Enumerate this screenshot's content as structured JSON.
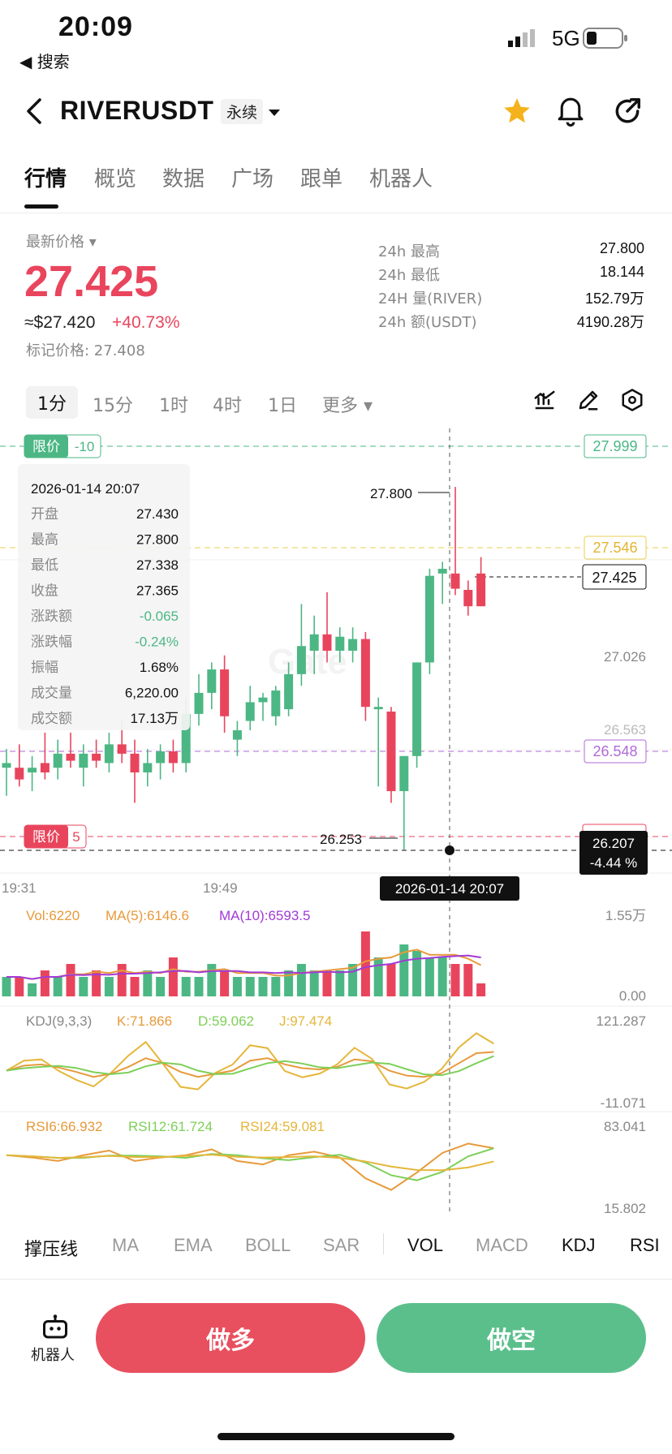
{
  "status": {
    "time": "20:09",
    "back_app": "◀ 搜索",
    "network": "5G"
  },
  "header": {
    "symbol": "RIVERUSDT",
    "type": "永续"
  },
  "tabs": [
    "行情",
    "概览",
    "数据",
    "广场",
    "跟单",
    "机器人"
  ],
  "price": {
    "label": "最新价格 ▾",
    "last": "27.425",
    "usd": "≈$27.420",
    "change": "+40.73%",
    "mark": "标记价格: 27.408"
  },
  "stats": [
    {
      "label": "24h  最高",
      "value": "27.800"
    },
    {
      "label": "24h  最低",
      "value": "18.144"
    },
    {
      "label": "24H  量(RIVER)",
      "value": "152.79万"
    },
    {
      "label": "24h  额(USDT)",
      "value": "4190.28万"
    }
  ],
  "timeframes": [
    "1分",
    "15分",
    "1时",
    "4时",
    "1日",
    "更多 ▾"
  ],
  "chart": {
    "price_labels": {
      "top": "27.999",
      "yellow": "27.546",
      "current": "27.425",
      "mid": "27.026",
      "purple": "26.548",
      "low_box": "26.207",
      "low_pct": "-4.44 %",
      "partial": "26.563"
    },
    "limit_tags": [
      {
        "label": "限价",
        "value": "-10",
        "color": "#4cb784"
      },
      {
        "label": "限价",
        "value": "5",
        "color": "#e8455d"
      }
    ],
    "high_marker": "27.800",
    "low_marker": "26.253",
    "time_labels": [
      "19:31",
      "19:49"
    ],
    "crosshair_time": "2026-01-14 20:07",
    "watermark": "Gate",
    "info": {
      "date": "2026-01-14 20:07",
      "rows": [
        {
          "k": "开盘",
          "v": "27.430"
        },
        {
          "k": "最高",
          "v": "27.800"
        },
        {
          "k": "最低",
          "v": "27.338"
        },
        {
          "k": "收盘",
          "v": "27.365"
        },
        {
          "k": "涨跌额",
          "v": "-0.065"
        },
        {
          "k": "涨跌幅",
          "v": "-0.24%"
        },
        {
          "k": "振幅",
          "v": "1.68%"
        },
        {
          "k": "成交量",
          "v": "6,220.00"
        },
        {
          "k": "成交额",
          "v": "17.13万"
        }
      ]
    },
    "vol": {
      "label": "Vol:6220",
      "ma5": "MA(5):6146.6",
      "ma10": "MA(10):6593.5",
      "top": "1.55万",
      "bottom": "0.00"
    },
    "kdj": {
      "label": "KDJ(9,3,3)",
      "k": "K:71.866",
      "d": "D:59.062",
      "j": "J:97.474",
      "top": "121.287",
      "bottom": "-11.071"
    },
    "rsi": {
      "r6": "RSI6:66.932",
      "r12": "RSI12:61.724",
      "r24": "RSI24:59.081",
      "top": "83.041",
      "bottom": "15.802"
    },
    "up_color": "#4cb784",
    "down_color": "#e8455d"
  },
  "indicator_tabs": [
    "撑压线",
    "MA",
    "EMA",
    "BOLL",
    "SAR",
    "VOL",
    "MACD",
    "KDJ",
    "RSI"
  ],
  "actions": {
    "robot": "机器人",
    "long": "做多",
    "short": "做空"
  },
  "chart_data": {
    "type": "candlestick",
    "ylim": [
      26.15,
      28.05
    ],
    "candles": [
      {
        "o": 26.6,
        "h": 26.68,
        "l": 26.48,
        "c": 26.62
      },
      {
        "o": 26.6,
        "h": 26.7,
        "l": 26.52,
        "c": 26.55
      },
      {
        "o": 26.58,
        "h": 26.65,
        "l": 26.5,
        "c": 26.6
      },
      {
        "o": 26.62,
        "h": 26.75,
        "l": 26.55,
        "c": 26.58
      },
      {
        "o": 26.6,
        "h": 26.72,
        "l": 26.55,
        "c": 26.66
      },
      {
        "o": 26.66,
        "h": 26.75,
        "l": 26.6,
        "c": 26.63
      },
      {
        "o": 26.6,
        "h": 26.7,
        "l": 26.52,
        "c": 26.66
      },
      {
        "o": 26.66,
        "h": 26.72,
        "l": 26.6,
        "c": 26.63
      },
      {
        "o": 26.62,
        "h": 26.75,
        "l": 26.58,
        "c": 26.7
      },
      {
        "o": 26.7,
        "h": 26.8,
        "l": 26.62,
        "c": 26.66
      },
      {
        "o": 26.66,
        "h": 26.72,
        "l": 26.45,
        "c": 26.58
      },
      {
        "o": 26.58,
        "h": 26.68,
        "l": 26.52,
        "c": 26.62
      },
      {
        "o": 26.62,
        "h": 26.7,
        "l": 26.55,
        "c": 26.67
      },
      {
        "o": 26.67,
        "h": 26.72,
        "l": 26.58,
        "c": 26.62
      },
      {
        "o": 26.62,
        "h": 26.9,
        "l": 26.58,
        "c": 26.83
      },
      {
        "o": 26.83,
        "h": 27.0,
        "l": 26.78,
        "c": 26.92
      },
      {
        "o": 26.92,
        "h": 27.05,
        "l": 26.85,
        "c": 27.02
      },
      {
        "o": 27.02,
        "h": 27.08,
        "l": 26.75,
        "c": 26.82
      },
      {
        "o": 26.72,
        "h": 26.8,
        "l": 26.65,
        "c": 26.76
      },
      {
        "o": 26.8,
        "h": 26.95,
        "l": 26.76,
        "c": 26.88
      },
      {
        "o": 26.88,
        "h": 26.92,
        "l": 26.8,
        "c": 26.9
      },
      {
        "o": 26.82,
        "h": 26.95,
        "l": 26.78,
        "c": 26.93
      },
      {
        "o": 26.85,
        "h": 27.05,
        "l": 26.82,
        "c": 27.0
      },
      {
        "o": 27.0,
        "h": 27.3,
        "l": 26.95,
        "c": 27.12
      },
      {
        "o": 27.1,
        "h": 27.25,
        "l": 27.0,
        "c": 27.17
      },
      {
        "o": 27.17,
        "h": 27.35,
        "l": 27.05,
        "c": 27.1
      },
      {
        "o": 27.1,
        "h": 27.2,
        "l": 27.05,
        "c": 27.16
      },
      {
        "o": 27.1,
        "h": 27.2,
        "l": 27.05,
        "c": 27.15
      },
      {
        "o": 27.15,
        "h": 27.18,
        "l": 26.8,
        "c": 26.86
      },
      {
        "o": 26.85,
        "h": 26.9,
        "l": 26.52,
        "c": 26.86
      },
      {
        "o": 26.84,
        "h": 26.86,
        "l": 26.45,
        "c": 26.5
      },
      {
        "o": 26.5,
        "h": 26.65,
        "l": 26.25,
        "c": 26.65
      },
      {
        "o": 26.65,
        "h": 27.05,
        "l": 26.6,
        "c": 27.05
      },
      {
        "o": 27.05,
        "h": 27.45,
        "l": 27.0,
        "c": 27.42
      },
      {
        "o": 27.43,
        "h": 27.48,
        "l": 27.3,
        "c": 27.45
      },
      {
        "o": 27.43,
        "h": 27.8,
        "l": 27.338,
        "c": 27.365
      },
      {
        "o": 27.36,
        "h": 27.4,
        "l": 27.25,
        "c": 27.29
      },
      {
        "o": 27.43,
        "h": 27.5,
        "l": 27.29,
        "c": 27.29
      }
    ],
    "volume": [
      3,
      3,
      2,
      4,
      3,
      5,
      3,
      4,
      3,
      5,
      3,
      4,
      3,
      6,
      3,
      3,
      5,
      4,
      3,
      3,
      3,
      3,
      4,
      5,
      4,
      4,
      4,
      5,
      10,
      6,
      5,
      8,
      7,
      6,
      6,
      5,
      5,
      2
    ],
    "kdj_k": [
      40,
      48,
      50,
      45,
      38,
      30,
      35,
      46,
      60,
      52,
      38,
      30,
      35,
      40,
      56,
      60,
      50,
      44,
      42,
      46,
      58,
      55,
      40,
      32,
      30,
      36,
      52,
      68,
      70
    ],
    "rsi6": [
      60,
      58,
      55,
      60,
      64,
      55,
      58,
      60,
      65,
      55,
      52,
      60,
      63,
      58,
      40,
      30,
      45,
      62,
      70,
      66
    ]
  }
}
